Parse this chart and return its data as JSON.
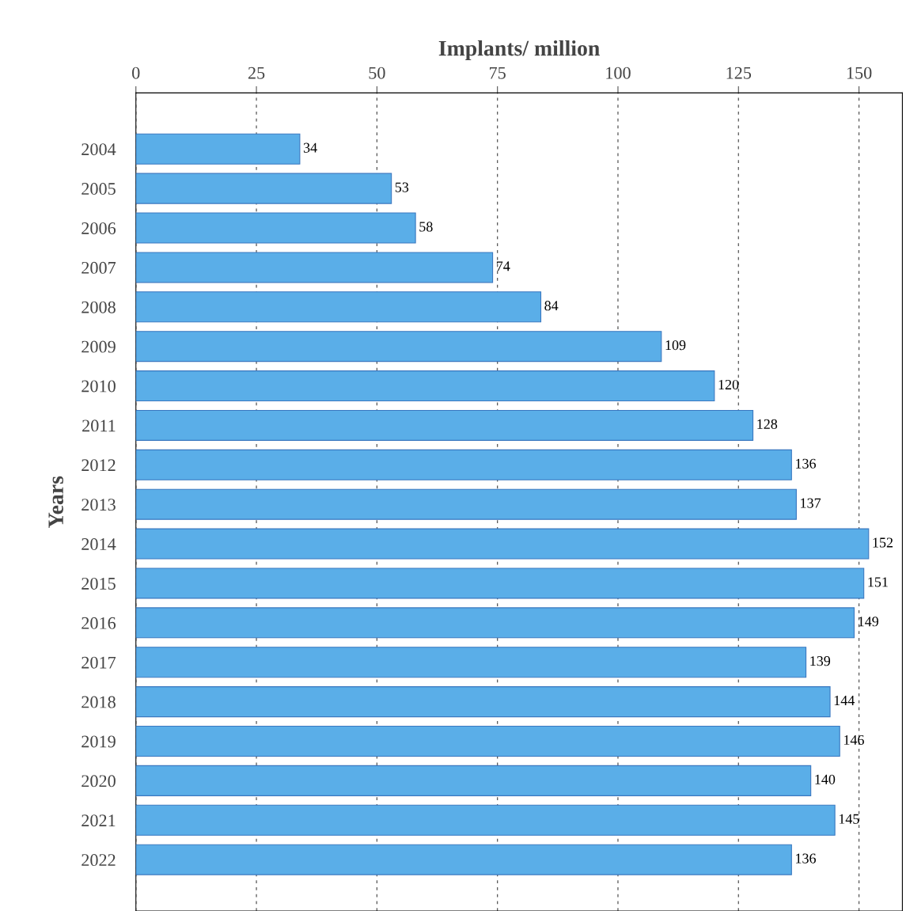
{
  "chart_data": {
    "type": "bar",
    "orientation": "horizontal",
    "xlabel": "Implants/ million",
    "ylabel": "Years",
    "categories": [
      "2004",
      "2005",
      "2006",
      "2007",
      "2008",
      "2009",
      "2010",
      "2011",
      "2012",
      "2013",
      "2014",
      "2015",
      "2016",
      "2017",
      "2018",
      "2019",
      "2020",
      "2021",
      "2022"
    ],
    "values": [
      34,
      53,
      58,
      74,
      84,
      109,
      120,
      128,
      136,
      137,
      152,
      151,
      149,
      139,
      144,
      146,
      140,
      145,
      136
    ],
    "color": "#5aaee8",
    "xlim": [
      0,
      159
    ],
    "xticks": [
      0,
      25,
      50,
      75,
      100,
      125,
      150
    ],
    "grid": "x",
    "data_labels": true,
    "legend": false
  }
}
